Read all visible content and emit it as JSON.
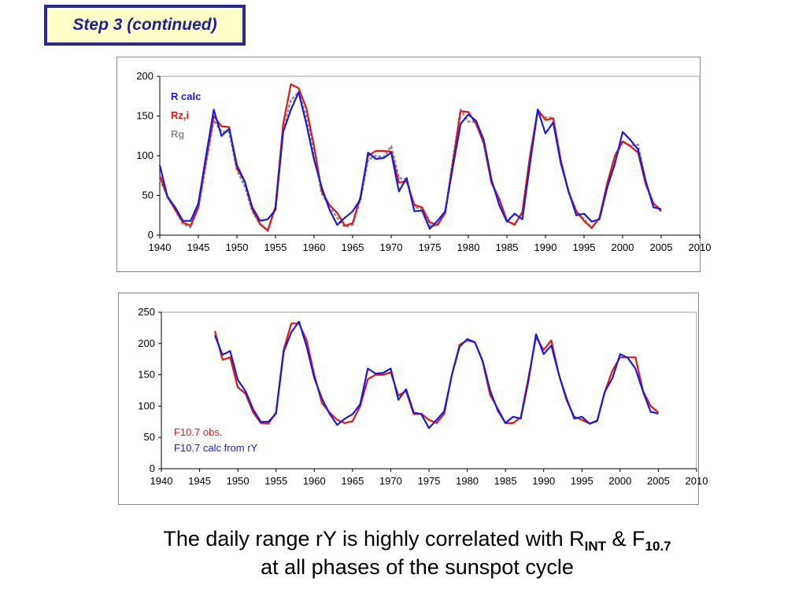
{
  "header": {
    "step_label": "Step 3 (continued)"
  },
  "caption": {
    "line1_prefix": "The daily range rY is highly correlated with R",
    "line1_sub1": "INT",
    "line1_mid": " & F",
    "line1_sub2": "10.7",
    "line2": "at all phases of the sunspot cycle"
  },
  "chart_data": [
    {
      "type": "line",
      "xlim": [
        1940,
        2010
      ],
      "ylim": [
        0,
        200
      ],
      "x_ticks": [
        1940,
        1945,
        1950,
        1955,
        1960,
        1965,
        1970,
        1975,
        1980,
        1985,
        1990,
        1995,
        2000,
        2005,
        2010
      ],
      "y_ticks": [
        0,
        50,
        100,
        150,
        200
      ],
      "grid": false,
      "legend_placement": "top-left",
      "series": [
        {
          "name": "Rg",
          "color": "#909090",
          "dashed": true,
          "x": [
            1940,
            1941,
            1942,
            1943,
            1944,
            1945,
            1946,
            1947,
            1948,
            1949,
            1950,
            1951,
            1952,
            1953,
            1954,
            1955,
            1956,
            1957,
            1958,
            1959,
            1960,
            1961,
            1962,
            1963,
            1964,
            1965,
            1966,
            1967,
            1968,
            1969,
            1970,
            1971,
            1972,
            1973,
            1974,
            1975,
            1976,
            1977,
            1978,
            1979,
            1980,
            1981,
            1982,
            1983,
            1984,
            1985,
            1986,
            1987,
            1988,
            1989,
            1990,
            1991,
            1992,
            1993,
            1994,
            1995,
            1996,
            1997,
            1998,
            1999,
            2000,
            2001,
            2002,
            2003,
            2004,
            2005
          ],
          "y": [
            70,
            50,
            32,
            14,
            10,
            35,
            90,
            145,
            130,
            130,
            82,
            62,
            30,
            14,
            5,
            35,
            135,
            170,
            180,
            150,
            105,
            52,
            36,
            22,
            10,
            13,
            45,
            95,
            100,
            98,
            112,
            72,
            70,
            35,
            33,
            12,
            12,
            28,
            95,
            158,
            143,
            143,
            115,
            66,
            44,
            18,
            14,
            28,
            100,
            155,
            148,
            148,
            92,
            55,
            30,
            20,
            9,
            22,
            60,
            95,
            118,
            113,
            114,
            66,
            40,
            32
          ]
        },
        {
          "name": "Rz,i",
          "color": "#e01818",
          "x": [
            1940,
            1941,
            1942,
            1943,
            1944,
            1945,
            1946,
            1947,
            1948,
            1949,
            1950,
            1951,
            1952,
            1953,
            1954,
            1955,
            1956,
            1957,
            1958,
            1959,
            1960,
            1961,
            1962,
            1963,
            1964,
            1965,
            1966,
            1967,
            1968,
            1969,
            1970,
            1971,
            1972,
            1973,
            1974,
            1975,
            1976,
            1977,
            1978,
            1979,
            1980,
            1981,
            1982,
            1983,
            1984,
            1985,
            1986,
            1987,
            1988,
            1989,
            1990,
            1991,
            1992,
            1993,
            1994,
            1995,
            1996,
            1997,
            1998,
            1999,
            2000,
            2001,
            2002,
            2003,
            2004,
            2005
          ],
          "y": [
            75,
            48,
            32,
            16,
            12,
            35,
            95,
            150,
            137,
            136,
            84,
            68,
            32,
            14,
            6,
            36,
            140,
            190,
            185,
            160,
            112,
            55,
            38,
            28,
            12,
            15,
            48,
            100,
            106,
            106,
            105,
            66,
            68,
            38,
            35,
            16,
            13,
            28,
            92,
            156,
            155,
            140,
            116,
            66,
            46,
            18,
            13,
            29,
            100,
            158,
            145,
            147,
            94,
            54,
            30,
            18,
            9,
            22,
            65,
            100,
            118,
            112,
            104,
            64,
            40,
            30
          ]
        },
        {
          "name": "R calc",
          "color": "#1a1ae0",
          "x": [
            1940,
            1941,
            1942,
            1943,
            1944,
            1945,
            1946,
            1947,
            1948,
            1949,
            1950,
            1951,
            1952,
            1953,
            1954,
            1955,
            1956,
            1957,
            1958,
            1959,
            1960,
            1961,
            1962,
            1963,
            1964,
            1965,
            1966,
            1967,
            1968,
            1969,
            1970,
            1971,
            1972,
            1973,
            1974,
            1975,
            1976,
            1977,
            1978,
            1979,
            1980,
            1981,
            1982,
            1983,
            1984,
            1985,
            1986,
            1987,
            1988,
            1989,
            1990,
            1991,
            1992,
            1993,
            1994,
            1995,
            1996,
            1997,
            1998,
            1999,
            2000,
            2001,
            2002,
            2003,
            2004,
            2005
          ],
          "y": [
            88,
            48,
            35,
            18,
            18,
            40,
            100,
            158,
            125,
            134,
            88,
            68,
            35,
            18,
            20,
            32,
            130,
            158,
            180,
            140,
            95,
            60,
            32,
            13,
            22,
            30,
            45,
            104,
            96,
            97,
            104,
            55,
            72,
            30,
            31,
            8,
            18,
            30,
            86,
            140,
            152,
            144,
            120,
            70,
            38,
            17,
            27,
            20,
            90,
            158,
            128,
            142,
            90,
            55,
            25,
            27,
            17,
            20,
            60,
            90,
            130,
            120,
            108,
            68,
            35,
            33
          ]
        }
      ]
    },
    {
      "type": "line",
      "xlim": [
        1940,
        2010
      ],
      "ylim": [
        0,
        250
      ],
      "x_ticks": [
        1940,
        1945,
        1950,
        1955,
        1960,
        1965,
        1970,
        1975,
        1980,
        1985,
        1990,
        1995,
        2000,
        2005,
        2010
      ],
      "y_ticks": [
        0,
        50,
        100,
        150,
        200,
        250
      ],
      "grid": false,
      "legend_placement": "bottom-left",
      "series": [
        {
          "name": "F10.7 obs.",
          "color": "#e01818",
          "x": [
            1947,
            1948,
            1949,
            1950,
            1951,
            1952,
            1953,
            1954,
            1955,
            1956,
            1957,
            1958,
            1959,
            1960,
            1961,
            1962,
            1963,
            1964,
            1965,
            1966,
            1967,
            1968,
            1969,
            1970,
            1971,
            1972,
            1973,
            1974,
            1975,
            1976,
            1977,
            1978,
            1979,
            1980,
            1981,
            1982,
            1983,
            1984,
            1985,
            1986,
            1987,
            1988,
            1989,
            1990,
            1991,
            1992,
            1993,
            1994,
            1995,
            1996,
            1997,
            1998,
            1999,
            2000,
            2001,
            2002,
            2003,
            2004,
            2005
          ],
          "y": [
            220,
            174,
            178,
            130,
            120,
            90,
            73,
            72,
            90,
            190,
            232,
            232,
            205,
            150,
            105,
            90,
            78,
            73,
            76,
            100,
            143,
            150,
            150,
            154,
            117,
            124,
            87,
            88,
            78,
            73,
            88,
            150,
            198,
            205,
            202,
            172,
            118,
            96,
            73,
            73,
            82,
            145,
            210,
            190,
            205,
            150,
            109,
            83,
            78,
            72,
            77,
            123,
            157,
            178,
            178,
            178,
            124,
            100,
            90
          ]
        },
        {
          "name": "F10.7 calc from rY",
          "color": "#1a1ae0",
          "x": [
            1947,
            1948,
            1949,
            1950,
            1951,
            1952,
            1953,
            1954,
            1955,
            1956,
            1957,
            1958,
            1959,
            1960,
            1961,
            1962,
            1963,
            1964,
            1965,
            1966,
            1967,
            1968,
            1969,
            1970,
            1971,
            1972,
            1973,
            1974,
            1975,
            1976,
            1977,
            1978,
            1979,
            1980,
            1981,
            1982,
            1983,
            1984,
            1985,
            1986,
            1987,
            1988,
            1989,
            1990,
            1991,
            1992,
            1993,
            1994,
            1995,
            1996,
            1997,
            1998,
            1999,
            2000,
            2001,
            2002,
            2003,
            2004,
            2005
          ],
          "y": [
            213,
            182,
            188,
            142,
            124,
            95,
            75,
            75,
            88,
            187,
            218,
            235,
            195,
            145,
            112,
            88,
            70,
            80,
            87,
            103,
            160,
            152,
            153,
            160,
            110,
            127,
            90,
            87,
            65,
            78,
            92,
            150,
            195,
            207,
            202,
            173,
            125,
            93,
            73,
            83,
            80,
            140,
            215,
            183,
            197,
            150,
            112,
            80,
            83,
            72,
            76,
            123,
            145,
            183,
            177,
            160,
            123,
            91,
            88
          ]
        }
      ]
    }
  ]
}
